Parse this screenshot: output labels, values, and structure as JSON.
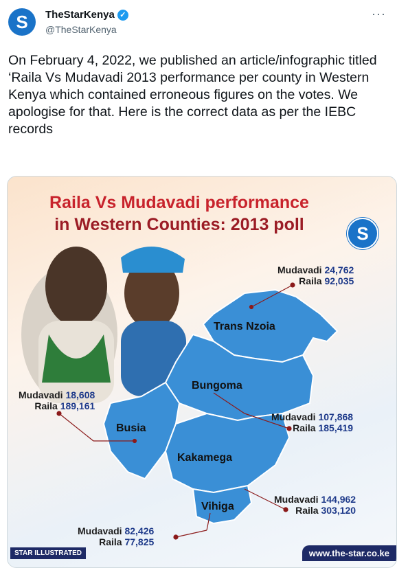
{
  "account": {
    "display_name": "TheStarKenya",
    "handle": "@TheStarKenya",
    "avatar_letter": "S",
    "verified_mark": "✓",
    "more_icon": "···"
  },
  "tweet": {
    "text": "On February 4, 2022, we published an article/infographic titled ‘Raila Vs Mudavadi 2013 performance per county in Western Kenya which contained erroneous figures on the votes. We apologise for that. Here is the correct data as per the IEBC records"
  },
  "infographic": {
    "title_line1": "Raila Vs Mudavadi performance",
    "title_line2": "in Western Counties: 2013 poll",
    "logo_letter": "S",
    "map_color": "#3a8fd6",
    "counties": [
      {
        "name": "Trans Nzoia",
        "mudavadi_label": "Mudavadi",
        "mudavadi": "24,762",
        "raila_label": "Raila",
        "raila": "92,035"
      },
      {
        "name": "Bungoma",
        "mudavadi_label": "Mudavadi",
        "mudavadi": "107,868",
        "raila_label": "Raila",
        "raila": "185,419"
      },
      {
        "name": "Busia",
        "mudavadi_label": "Mudavadi",
        "mudavadi": "18,608",
        "raila_label": "Raila",
        "raila": "189,161"
      },
      {
        "name": "Kakamega",
        "mudavadi_label": "Mudavadi",
        "mudavadi": "144,962",
        "raila_label": "Raila",
        "raila": "303,120"
      },
      {
        "name": "Vihiga",
        "mudavadi_label": "Mudavadi",
        "mudavadi": "82,426",
        "raila_label": "Raila",
        "raila": "77,825"
      }
    ],
    "footer_left": "STAR ILLUSTRATED",
    "footer_right": "www.the-star.co.ke"
  }
}
